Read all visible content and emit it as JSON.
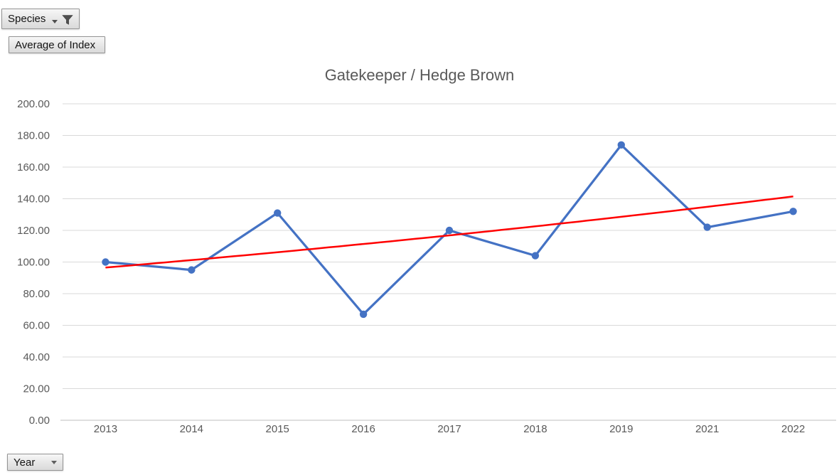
{
  "field_buttons": {
    "species": {
      "label": "Species",
      "icons": [
        "dropdown-arrow",
        "filter-funnel"
      ],
      "state": "filtered"
    },
    "values": {
      "label": "Average of Index"
    },
    "axis": {
      "label": "Year",
      "icons": [
        "dropdown-arrow"
      ]
    }
  },
  "chart_data": {
    "type": "line",
    "title": "Gatekeeper / Hedge Brown",
    "categories": [
      "2013",
      "2014",
      "2015",
      "2016",
      "2017",
      "2018",
      "2019",
      "2021",
      "2022"
    ],
    "series": [
      {
        "name": "Average of Index",
        "type": "line",
        "marker": "circle",
        "color": "#4472C4",
        "values": [
          100,
          95,
          131,
          67,
          120,
          104,
          174,
          122,
          132
        ]
      },
      {
        "name": "Trendline",
        "type": "trendline",
        "curve": "exponential",
        "color": "#FF0000",
        "start_value": 96.5,
        "end_value": 141.5
      }
    ],
    "xlabel": "Year",
    "ylabel": "Average of Index",
    "ylim": [
      0,
      200
    ],
    "ytick_step": 20,
    "ytick_labels": [
      "0.00",
      "20.00",
      "40.00",
      "60.00",
      "80.00",
      "100.00",
      "120.00",
      "140.00",
      "160.00",
      "180.00",
      "200.00"
    ],
    "grid": true,
    "legend": "none",
    "styles": {
      "grid_color": "#D9D9D9",
      "axis_line_color": "#BFBFBF",
      "tick_text_color": "#595959",
      "title_color": "#595959"
    }
  }
}
